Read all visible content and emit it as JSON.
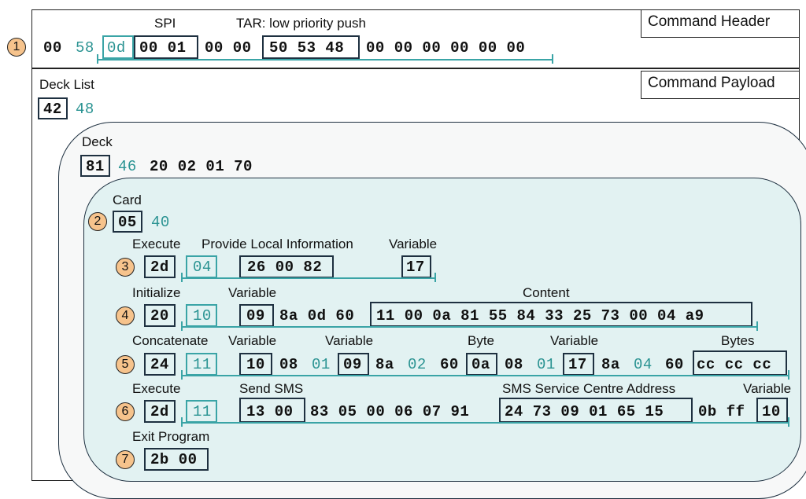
{
  "header": {
    "title": "Command Header",
    "spi_label": "SPI",
    "tar_label": "TAR: low priority push",
    "bytes_a": "00",
    "bytes_b": "58",
    "bytes_c": "0d",
    "spi_bytes": "00 01",
    "bytes_d": "00 00",
    "tar_bytes": "50 53 48",
    "bytes_e": "00 00 00 00 00 00"
  },
  "payload": {
    "title": "Command Payload",
    "deck_list_label": "Deck List",
    "deck_list_tag": "42",
    "deck_list_len": "48"
  },
  "deck": {
    "label": "Deck",
    "tag": "81",
    "len": "46",
    "data": "20 02 01 70"
  },
  "card": {
    "label": "Card",
    "tag": "05",
    "len": "40"
  },
  "steps": {
    "s1": "1",
    "s2": "2",
    "s3": "3",
    "s4": "4",
    "s5": "5",
    "s6": "6",
    "s7": "7"
  },
  "execute1": {
    "label": "Execute",
    "tag": "2d",
    "len": "04",
    "pli_label": "Provide Local Information",
    "pli_bytes": "26 00 82",
    "var_label": "Variable",
    "var_byte": "17"
  },
  "initialize": {
    "label": "Initialize",
    "tag": "20",
    "len": "10",
    "var_label": "Variable",
    "var_tag": "09",
    "mid": "8a 0d 60",
    "content_label": "Content",
    "content_bytes": "11 00 0a 81 55 84 33 25 73 00 04 a9"
  },
  "concatenate": {
    "label": "Concatenate",
    "tag": "24",
    "len": "11",
    "var1_label": "Variable",
    "v1": "10",
    "m1": "08",
    "l1": "01",
    "var2_label": "Variable",
    "v2": "09",
    "m2": "8a",
    "l2": "02",
    "m3": "60",
    "byte_label": "Byte",
    "b": "0a",
    "m4": "08",
    "l3": "01",
    "var3_label": "Variable",
    "v3": "17",
    "m5": "8a",
    "l4": "04",
    "m6": "60",
    "bytes_label": "Bytes",
    "bytes": "cc cc cc"
  },
  "execute2": {
    "label": "Execute",
    "tag": "2d",
    "len": "11",
    "sms_label": "Send SMS",
    "sms_bytes": "13 00",
    "mid": "83 05 00 06 07 91",
    "smsc_label": "SMS Service Centre Address",
    "smsc_bytes": "24 73 09 01 65 15",
    "tail": "0b ff",
    "var_label": "Variable",
    "var_byte": "10"
  },
  "exit": {
    "label": "Exit Program",
    "bytes": "2b 00"
  }
}
